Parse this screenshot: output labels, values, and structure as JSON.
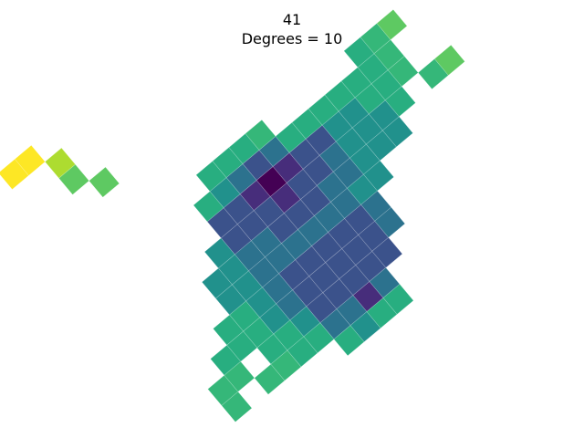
{
  "chart_data": {
    "type": "heatmap",
    "title": "41",
    "subtitle": "Degrees = 10",
    "rotation_degrees": 10,
    "axes_visible": false,
    "colormap": "viridis",
    "value_range": [
      0,
      9
    ],
    "grid_origin_cell": [
      7,
      5
    ],
    "cells": [
      [
        0,
        -3,
        0
      ],
      [
        1,
        -3,
        1
      ],
      [
        -1,
        -3,
        1
      ],
      [
        0,
        -2,
        1
      ],
      [
        0,
        4,
        1
      ],
      [
        2,
        -3,
        2
      ],
      [
        -2,
        -3,
        2
      ],
      [
        0,
        -1,
        2
      ],
      [
        1,
        -1,
        2
      ],
      [
        -1,
        -1,
        2
      ],
      [
        1,
        -2,
        2
      ],
      [
        -1,
        -2,
        2
      ],
      [
        2,
        -2,
        2
      ],
      [
        -2,
        -2,
        2
      ],
      [
        0,
        -4,
        2
      ],
      [
        -1,
        3,
        2
      ],
      [
        0,
        3,
        2
      ],
      [
        1,
        3,
        2
      ],
      [
        -1,
        2,
        2
      ],
      [
        0,
        2,
        2
      ],
      [
        1,
        2,
        2
      ],
      [
        -1,
        1,
        2
      ],
      [
        0,
        1,
        2
      ],
      [
        1,
        1,
        2
      ],
      [
        2,
        2,
        2
      ],
      [
        -2,
        2,
        2
      ],
      [
        2,
        1,
        2
      ],
      [
        -2,
        1,
        2
      ],
      [
        2,
        3,
        2
      ],
      [
        -2,
        3,
        2
      ],
      [
        3,
        -3,
        2
      ],
      [
        -3,
        -3,
        2
      ],
      [
        -3,
        -2,
        2
      ],
      [
        2,
        -1,
        3
      ],
      [
        -2,
        -1,
        3
      ],
      [
        3,
        -2,
        3
      ],
      [
        -1,
        -4,
        3
      ],
      [
        1,
        -4,
        3
      ],
      [
        -1,
        4,
        3
      ],
      [
        1,
        4,
        3
      ],
      [
        0,
        0,
        3
      ],
      [
        1,
        0,
        3
      ],
      [
        -1,
        0,
        3
      ],
      [
        2,
        0,
        3
      ],
      [
        -2,
        0,
        3
      ],
      [
        3,
        1,
        3
      ],
      [
        -3,
        1,
        3
      ],
      [
        3,
        2,
        3
      ],
      [
        -3,
        2,
        3
      ],
      [
        -2,
        4,
        3
      ],
      [
        3,
        -1,
        3
      ],
      [
        -3,
        -1,
        3
      ],
      [
        -3,
        0,
        3
      ],
      [
        4,
        -3,
        4
      ],
      [
        -4,
        -2,
        4
      ],
      [
        -4,
        -1,
        4
      ],
      [
        -4,
        0,
        4
      ],
      [
        -3,
        3,
        4
      ],
      [
        3,
        0,
        4
      ],
      [
        4,
        -1,
        4
      ],
      [
        4,
        0,
        4
      ],
      [
        5,
        -3,
        4
      ],
      [
        -5,
        -1,
        4
      ],
      [
        -5,
        0,
        4
      ],
      [
        5,
        -1,
        4
      ],
      [
        -1,
        5,
        4
      ],
      [
        -4,
        1,
        4
      ],
      [
        -2,
        -4,
        4
      ],
      [
        -4,
        2,
        4
      ],
      [
        4,
        -2,
        4
      ],
      [
        5,
        -2,
        4
      ],
      [
        6,
        -2,
        4
      ],
      [
        6,
        -1,
        4
      ],
      [
        2,
        -4,
        5
      ],
      [
        -4,
        3,
        5
      ],
      [
        1,
        5,
        5
      ],
      [
        -2,
        5,
        5
      ],
      [
        -5,
        1,
        5
      ],
      [
        -6,
        1,
        5
      ],
      [
        -5,
        2,
        5
      ],
      [
        -5,
        3,
        5
      ],
      [
        -6,
        2,
        5
      ],
      [
        -1,
        -5,
        5
      ],
      [
        -2,
        -5,
        5
      ],
      [
        -3,
        -4,
        5
      ],
      [
        3,
        -4,
        5
      ],
      [
        4,
        -4,
        5
      ],
      [
        5,
        -4,
        5
      ],
      [
        6,
        -4,
        5
      ],
      [
        7,
        -4,
        5
      ],
      [
        6,
        -3,
        5
      ],
      [
        7,
        -3,
        5
      ],
      [
        7,
        -2,
        5
      ],
      [
        -3,
        4,
        5
      ],
      [
        7,
        -5,
        5
      ],
      [
        -4,
        4,
        5
      ],
      [
        -7,
        2,
        5
      ],
      [
        0,
        5,
        5
      ],
      [
        0,
        -5,
        5
      ],
      [
        8,
        -5,
        6
      ],
      [
        -7,
        3,
        6
      ],
      [
        -6,
        4,
        6
      ],
      [
        -5,
        4,
        6
      ],
      [
        8,
        -4,
        6
      ],
      [
        8,
        -3,
        6
      ],
      [
        -8,
        3,
        6
      ],
      [
        1,
        -5,
        6
      ],
      [
        -8,
        4,
        6
      ],
      [
        9,
        -2,
        6
      ],
      [
        9,
        -5,
        7
      ],
      [
        -7,
        -9,
        7
      ],
      [
        -6,
        -8,
        7
      ],
      [
        10,
        -2,
        7
      ],
      [
        -7,
        -10,
        8
      ],
      [
        -8,
        -11,
        9
      ],
      [
        -9,
        -11,
        9
      ]
    ],
    "cell_labels": []
  },
  "colors": {
    "background": "#ffffff",
    "title": "#000000",
    "viridis_stops": [
      "#440154",
      "#472d7b",
      "#3b528b",
      "#2c728e",
      "#21918c",
      "#28ae80",
      "#35b779",
      "#5ec962",
      "#addc30",
      "#fde725"
    ]
  }
}
